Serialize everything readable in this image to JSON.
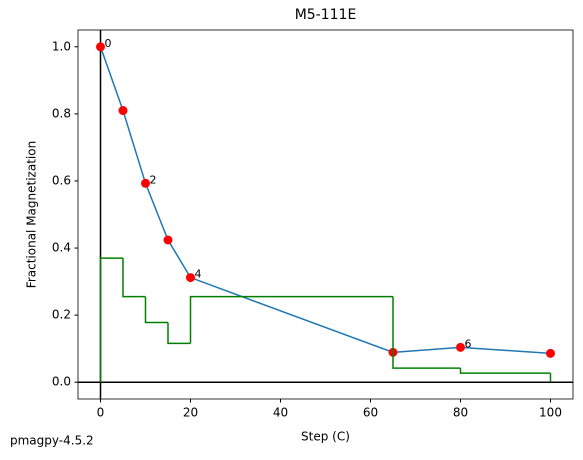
{
  "chart_data": {
    "type": "line",
    "title": "M5-111E",
    "x_label": "Step (C)",
    "y_label": "Fractional Magnetization",
    "footer": "pmagpy-4.5.2",
    "xlim": [
      -5,
      105
    ],
    "ylim": [
      -0.05,
      1.05
    ],
    "xticks": [
      0,
      20,
      40,
      60,
      80,
      100
    ],
    "yticks": [
      {
        "value": 0,
        "label": "0.0"
      },
      {
        "value": 0.2,
        "label": "0.2"
      },
      {
        "value": 0.4,
        "label": "0.4"
      },
      {
        "value": 0.6,
        "label": "0.6"
      },
      {
        "value": 0.8,
        "label": "0.8"
      },
      {
        "value": 1.0,
        "label": "1.0"
      }
    ],
    "grid": false,
    "series": [
      {
        "type": "line",
        "color": "#1f77b4",
        "marker_color": "#ff0000",
        "x": [
          0,
          5,
          10,
          15,
          20,
          65,
          80,
          100
        ],
        "values": [
          1.0,
          0.81,
          0.593,
          0.424,
          0.312,
          0.089,
          0.104,
          0.086
        ],
        "point_labels": [
          "0",
          null,
          "2",
          null,
          "4",
          null,
          "6",
          null
        ]
      },
      {
        "type": "step",
        "color": "#008000",
        "x": [
          0,
          5,
          10,
          15,
          20,
          65,
          80,
          100,
          100
        ],
        "values": [
          0,
          0.37,
          0.255,
          0.178,
          0.116,
          0.255,
          0.042,
          0.027,
          0
        ]
      }
    ]
  }
}
